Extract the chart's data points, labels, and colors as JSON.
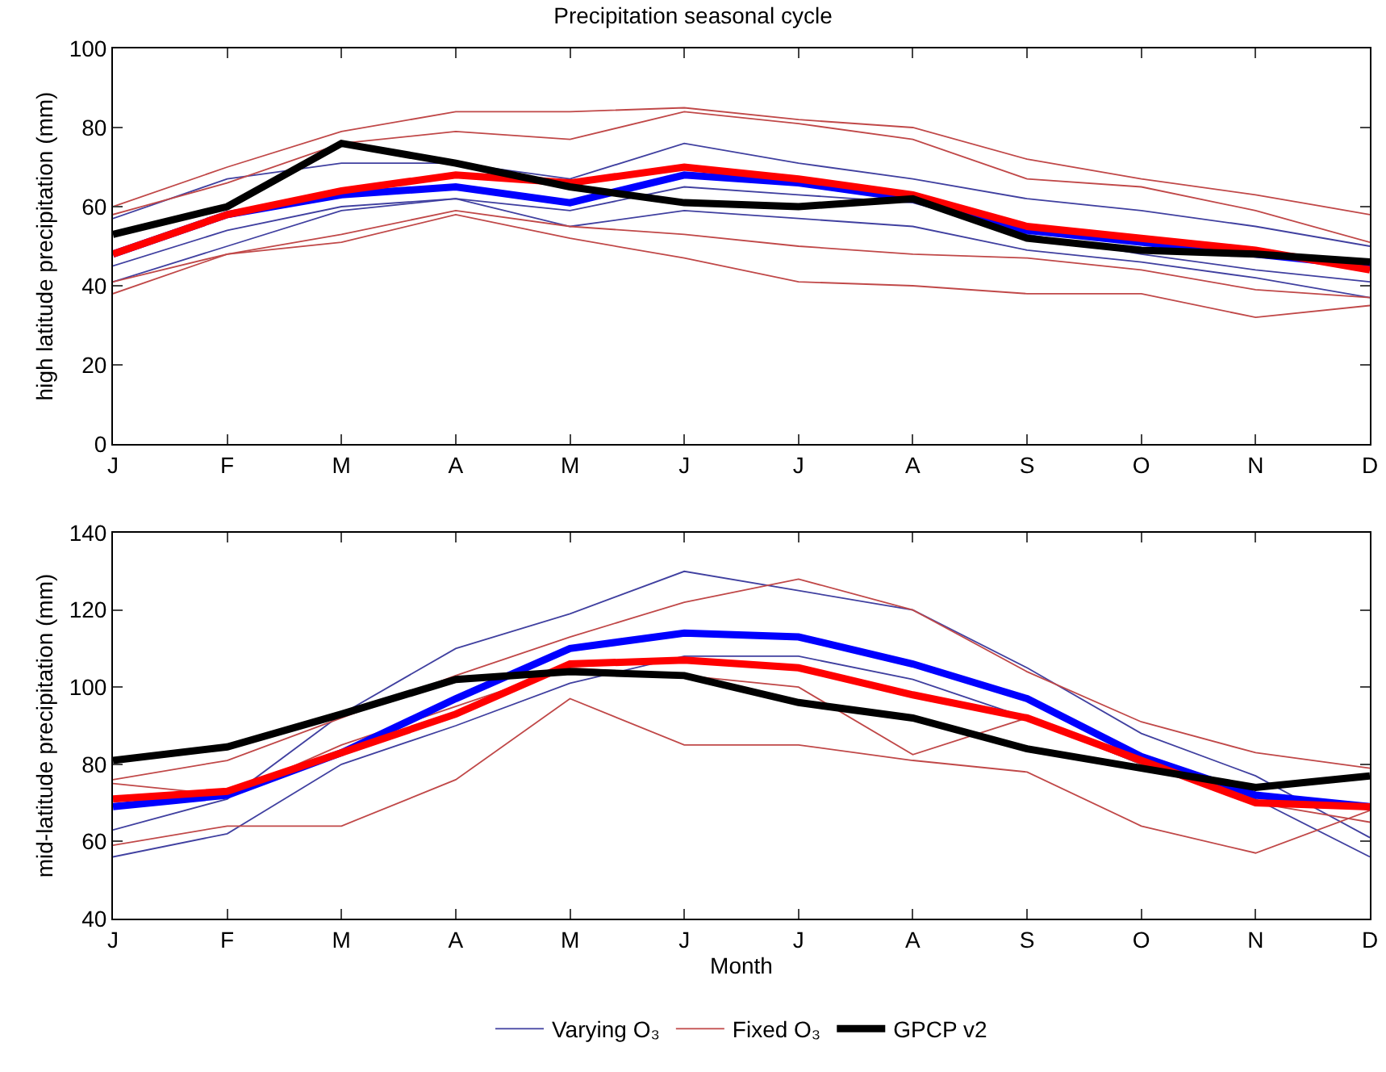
{
  "chart_data": [
    {
      "type": "line",
      "title": "Precipitation seasonal cycle",
      "ylabel": "high latitude precipitation (mm)",
      "categories": [
        "J",
        "F",
        "M",
        "A",
        "M",
        "J",
        "J",
        "A",
        "S",
        "O",
        "N",
        "D"
      ],
      "ylim": [
        0,
        100
      ],
      "yticks": [
        0,
        20,
        40,
        60,
        80,
        100
      ],
      "grid": false,
      "legend": false,
      "series": [
        {
          "color": "#4040a0",
          "values": [
            57,
            67,
            71,
            71,
            67,
            76,
            71,
            67,
            62,
            59,
            55,
            50
          ]
        },
        {
          "color": "#4040a0",
          "values": [
            45,
            54,
            60,
            62,
            59,
            65,
            63,
            61,
            53,
            48,
            44,
            41
          ]
        },
        {
          "color": "#4040a0",
          "values": [
            41,
            50,
            59,
            62,
            55,
            59,
            57,
            55,
            49,
            46,
            42,
            37
          ]
        },
        {
          "color": "#c04848",
          "values": [
            60,
            70,
            79,
            84,
            84,
            85,
            82,
            80,
            72,
            67,
            63,
            58
          ]
        },
        {
          "color": "#c04848",
          "values": [
            58,
            66,
            76,
            79,
            77,
            84,
            81,
            77,
            67,
            65,
            59,
            51
          ]
        },
        {
          "color": "#c04848",
          "values": [
            41,
            48,
            53,
            59,
            55,
            53,
            50,
            48,
            47,
            44,
            39,
            37
          ]
        },
        {
          "color": "#c04848",
          "values": [
            38,
            48,
            51,
            58,
            52,
            47,
            41,
            40,
            38,
            38,
            32,
            35
          ]
        },
        {
          "color": "#0000ff",
          "values": [
            48,
            58,
            63,
            65,
            61,
            68,
            66,
            62,
            54,
            51,
            48,
            45
          ]
        },
        {
          "color": "#ff0000",
          "values": [
            48,
            58,
            64,
            68,
            66,
            70,
            67,
            63,
            55,
            52,
            49,
            44
          ]
        },
        {
          "color": "#000000",
          "values": [
            53,
            60,
            76,
            71,
            65,
            61,
            60,
            62,
            52,
            49,
            48,
            46
          ]
        }
      ]
    },
    {
      "type": "line",
      "xlabel": "Month",
      "ylabel": "mid-latitude precipitation (mm)",
      "categories": [
        "J",
        "F",
        "M",
        "A",
        "M",
        "J",
        "J",
        "A",
        "S",
        "O",
        "N",
        "D"
      ],
      "ylim": [
        40,
        140
      ],
      "yticks": [
        40,
        60,
        80,
        100,
        120,
        140
      ],
      "grid": false,
      "legend": "bottom",
      "series": [
        {
          "name": "Varying O₃",
          "color": "#4040a0",
          "values": [
            63,
            71,
            93,
            110,
            119,
            130,
            125,
            120,
            105,
            88,
            77,
            61
          ]
        },
        {
          "color": "#4040a0",
          "values": [
            56,
            62,
            80,
            90,
            101,
            108,
            108,
            102,
            92,
            80,
            71,
            56
          ]
        },
        {
          "name": "Fixed O₃",
          "color": "#c04848",
          "values": [
            76,
            81,
            92,
            103,
            113,
            122,
            128,
            120,
            104,
            91,
            83,
            79
          ]
        },
        {
          "color": "#c04848",
          "values": [
            75,
            72,
            85,
            95,
            105,
            103,
            100,
            82.5,
            92,
            80,
            70,
            65
          ]
        },
        {
          "color": "#c04848",
          "values": [
            59,
            64,
            64,
            76,
            97,
            85,
            85,
            81,
            78,
            64,
            57,
            68
          ]
        },
        {
          "color": "#0000ff",
          "values": [
            69,
            72,
            83,
            97,
            110,
            114,
            113,
            106,
            97,
            82,
            72,
            69
          ]
        },
        {
          "color": "#ff0000",
          "values": [
            71,
            73,
            83,
            93,
            106,
            107,
            105,
            98,
            92,
            81,
            70,
            69
          ]
        },
        {
          "name": "GPCP v2",
          "color": "#000000",
          "values": [
            81,
            84.5,
            93,
            102,
            104,
            103,
            96,
            92,
            84,
            79,
            74,
            77
          ]
        }
      ]
    }
  ]
}
